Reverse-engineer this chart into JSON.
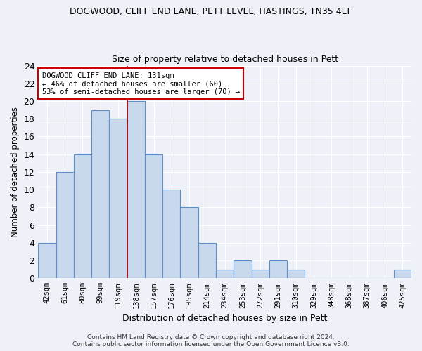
{
  "title1": "DOGWOOD, CLIFF END LANE, PETT LEVEL, HASTINGS, TN35 4EF",
  "title2": "Size of property relative to detached houses in Pett",
  "xlabel": "Distribution of detached houses by size in Pett",
  "ylabel": "Number of detached properties",
  "categories": [
    "42sqm",
    "61sqm",
    "80sqm",
    "99sqm",
    "119sqm",
    "138sqm",
    "157sqm",
    "176sqm",
    "195sqm",
    "214sqm",
    "234sqm",
    "253sqm",
    "272sqm",
    "291sqm",
    "310sqm",
    "329sqm",
    "348sqm",
    "368sqm",
    "387sqm",
    "406sqm",
    "425sqm"
  ],
  "values": [
    4,
    12,
    14,
    19,
    18,
    20,
    14,
    10,
    8,
    4,
    1,
    2,
    1,
    2,
    1,
    0,
    0,
    0,
    0,
    0,
    1
  ],
  "bar_color": "#c9d9ed",
  "bar_edge_color": "#5b8fc9",
  "vline_x": 4.5,
  "vline_color": "#aa0000",
  "annotation_text": "DOGWOOD CLIFF END LANE: 131sqm\n← 46% of detached houses are smaller (60)\n53% of semi-detached houses are larger (70) →",
  "annotation_box_color": "#ffffff",
  "annotation_box_edge": "#cc0000",
  "footer": "Contains HM Land Registry data © Crown copyright and database right 2024.\nContains public sector information licensed under the Open Government Licence v3.0.",
  "ylim": [
    0,
    24
  ],
  "yticks": [
    0,
    2,
    4,
    6,
    8,
    10,
    12,
    14,
    16,
    18,
    20,
    22,
    24
  ],
  "background_color": "#eef2f8",
  "grid_color": "#ffffff"
}
